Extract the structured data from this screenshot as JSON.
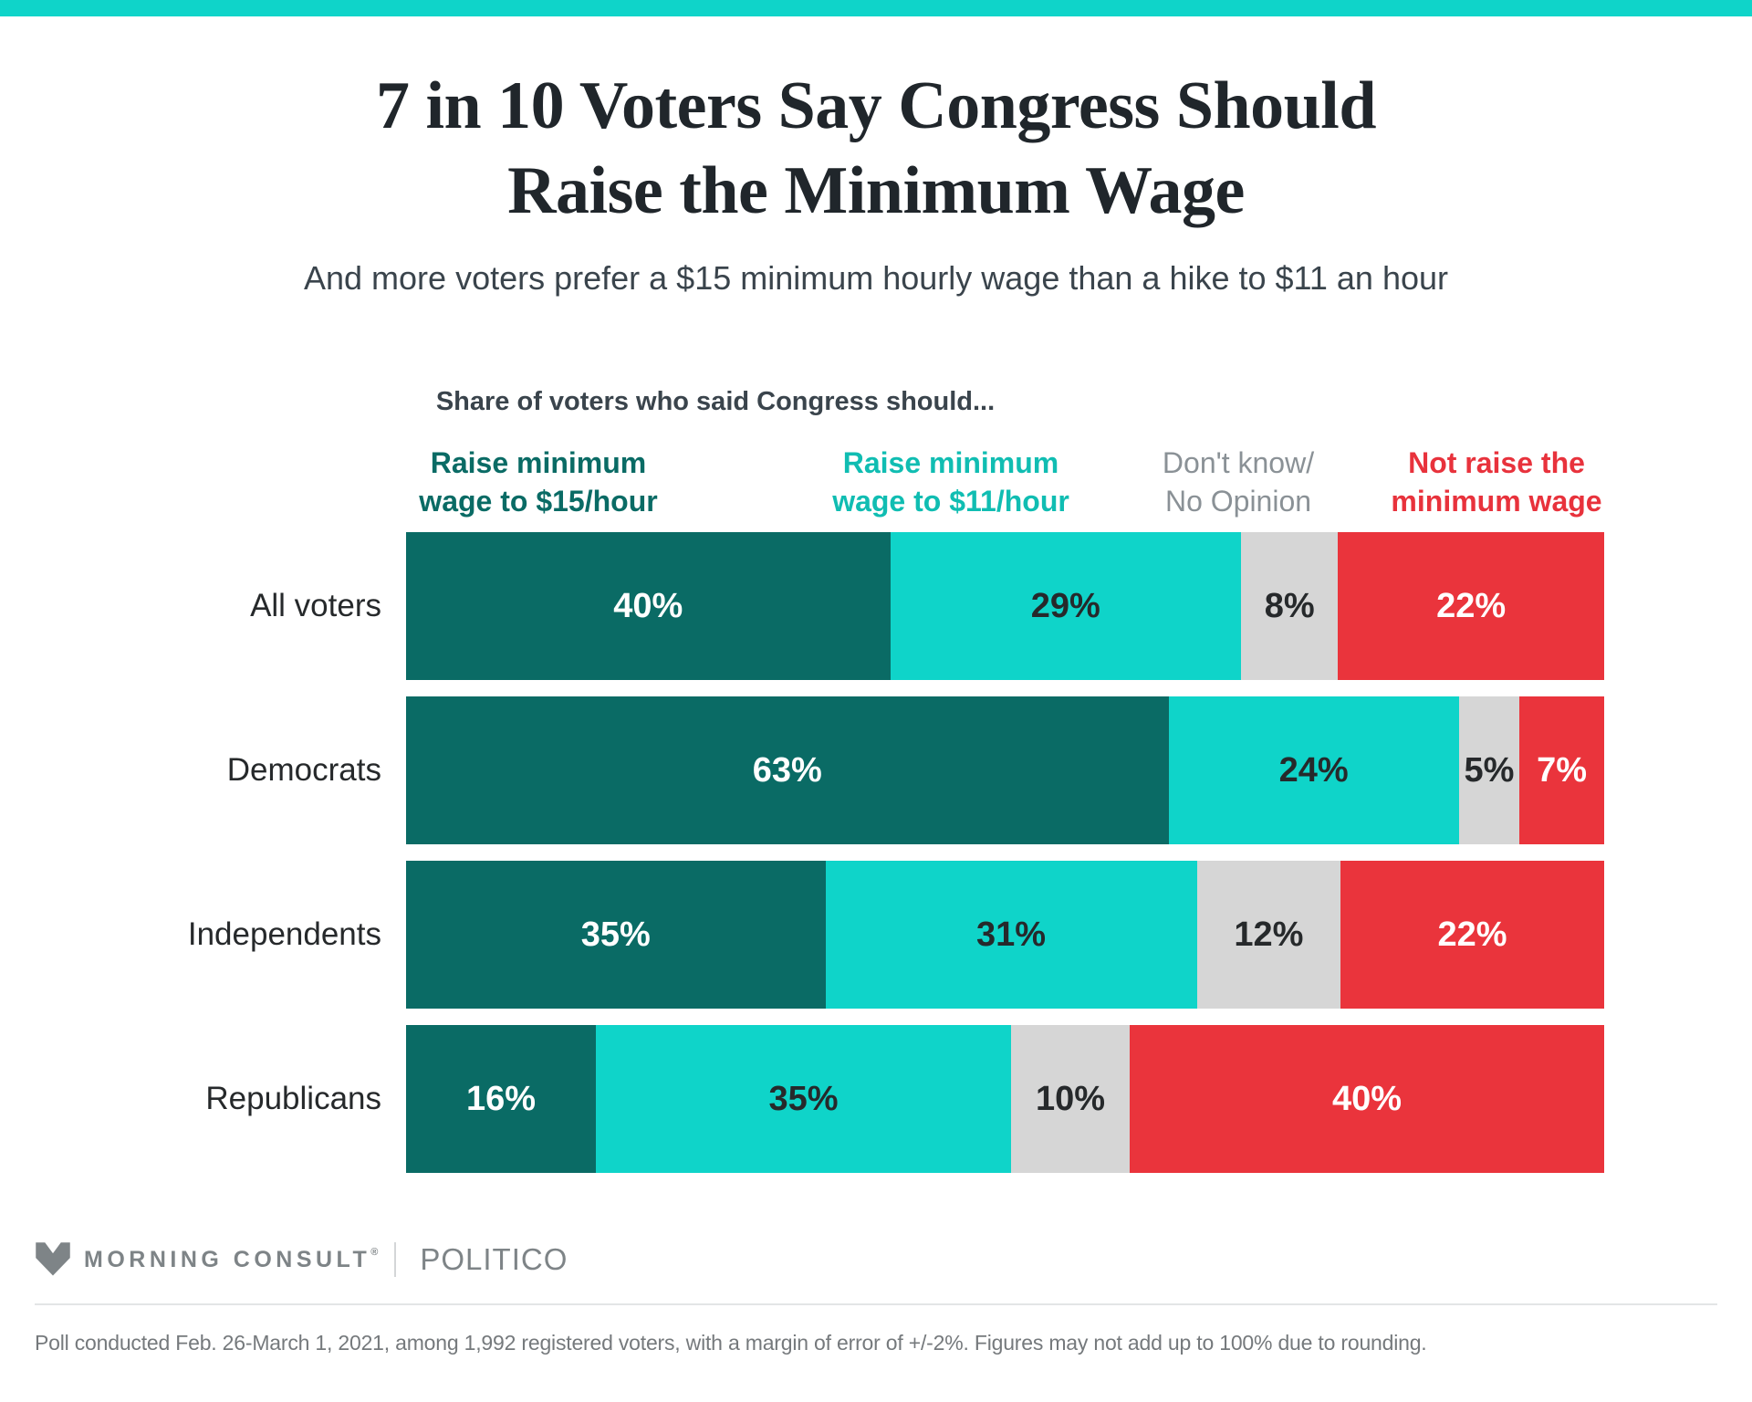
{
  "accent_color": "#0FD4C9",
  "header": {
    "title_line1": "7 in 10 Voters Say Congress Should",
    "title_line2": "Raise the Minimum Wage",
    "subtitle": "And more voters prefer a $15 minimum hourly wage than a hike to $11 an hour"
  },
  "chart_data": {
    "type": "bar",
    "variant": "horizontal-stacked",
    "title": "Share of voters who said Congress should...",
    "unit": "%",
    "xlim": [
      0,
      100
    ],
    "grid": false,
    "legend_position": "top",
    "categories": [
      "All voters",
      "Democrats",
      "Independents",
      "Republicans"
    ],
    "series": [
      {
        "name": "Raise minimum wage to $15/hour",
        "legend_lines": [
          "Raise minimum",
          "wage to $15/hour"
        ],
        "color": "#0A6B65",
        "legend_text_color": "#0A6B65",
        "value_text_color": "#FFFFFF",
        "legend_bold": true,
        "values": [
          40,
          63,
          35,
          16
        ]
      },
      {
        "name": "Raise minimum wage to $11/hour",
        "legend_lines": [
          "Raise minimum",
          "wage to $11/hour"
        ],
        "color": "#0FD4C9",
        "legend_text_color": "#10BDB2",
        "value_text_color": "#26292B",
        "legend_bold": true,
        "values": [
          29,
          24,
          31,
          35
        ]
      },
      {
        "name": "Don't know/No Opinion",
        "legend_lines": [
          "Don't know/",
          "No Opinion"
        ],
        "color": "#D6D6D6",
        "legend_text_color": "#8A9196",
        "value_text_color": "#26292B",
        "legend_bold": false,
        "values": [
          8,
          5,
          12,
          10
        ]
      },
      {
        "name": "Not raise the minimum wage",
        "legend_lines": [
          "Not raise the",
          "minimum wage"
        ],
        "color": "#EA343C",
        "legend_text_color": "#E8323C",
        "value_text_color": "#FFFFFF",
        "legend_bold": true,
        "values": [
          22,
          7,
          22,
          40
        ]
      }
    ]
  },
  "footer": {
    "morning_consult": "MORNING CONSULT",
    "registered_mark": "®",
    "politico": "POLITICO",
    "note": "Poll conducted Feb. 26-March 1, 2021, among 1,992 registered voters, with a margin of error of +/-2%. Figures may not add up to 100% due to rounding."
  }
}
